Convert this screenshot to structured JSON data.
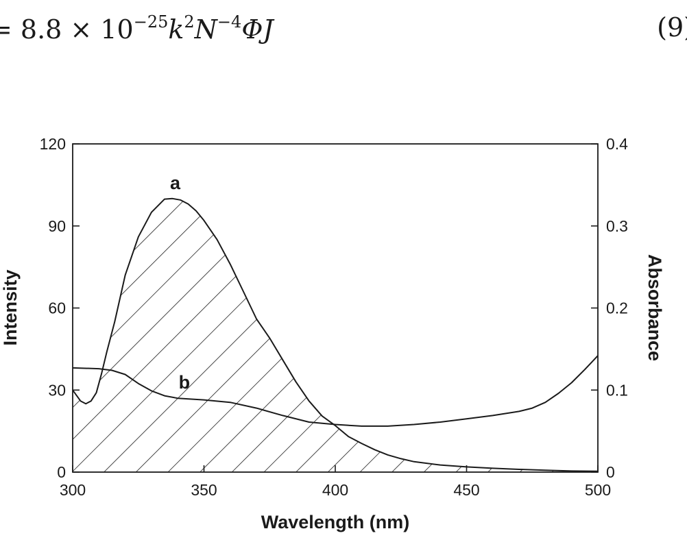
{
  "equation": {
    "lhs": "= 8.8 × 10",
    "exp1": "−25",
    "k": "k",
    "exp2": "2",
    "n": "N",
    "exp3": "−4",
    "rest": "ΦJ",
    "number": "(9)"
  },
  "chart_data": {
    "type": "line",
    "title": "",
    "xlabel": "Wavelength (nm)",
    "ylabel": "Intensity",
    "y2label": "Absorbance",
    "xlim": [
      300,
      500
    ],
    "ylim": [
      0,
      120
    ],
    "y2lim": [
      0,
      0.4
    ],
    "xticks": [
      300,
      350,
      400,
      450,
      500
    ],
    "yticks": [
      0,
      30,
      60,
      90,
      120
    ],
    "y2ticks": [
      "0",
      "0.1",
      "0.2",
      "0.3",
      "0.4"
    ],
    "grid": false,
    "series": [
      {
        "name": "a",
        "axis": "left",
        "x": [
          300,
          303,
          305,
          307,
          309,
          311,
          313,
          316,
          320,
          325,
          330,
          335,
          338,
          341,
          344,
          347,
          350,
          355,
          360,
          365,
          370,
          375,
          380,
          385,
          390,
          395,
          400,
          405,
          410,
          415,
          420,
          425,
          430,
          440,
          450,
          460,
          470,
          480,
          490,
          500
        ],
        "values": [
          30,
          26,
          25,
          26,
          29,
          36,
          44,
          55,
          72,
          86,
          95,
          99.8,
          100,
          99.5,
          98,
          95.5,
          92,
          85,
          76,
          66,
          56,
          49,
          41,
          33,
          26,
          20.5,
          17,
          13,
          10.5,
          8.2,
          6.3,
          4.9,
          3.8,
          2.6,
          1.9,
          1.4,
          1.0,
          0.7,
          0.4,
          0.3
        ]
      },
      {
        "name": "b",
        "axis": "right",
        "x": [
          300,
          310,
          315,
          320,
          325,
          330,
          335,
          340,
          350,
          360,
          370,
          380,
          390,
          400,
          410,
          420,
          430,
          440,
          450,
          460,
          470,
          475,
          480,
          485,
          490,
          495,
          500
        ],
        "values": [
          0.127,
          0.126,
          0.124,
          0.119,
          0.108,
          0.099,
          0.093,
          0.09,
          0.088,
          0.085,
          0.078,
          0.069,
          0.061,
          0.058,
          0.056,
          0.056,
          0.058,
          0.061,
          0.065,
          0.069,
          0.074,
          0.078,
          0.085,
          0.096,
          0.109,
          0.125,
          0.142
        ]
      }
    ]
  }
}
